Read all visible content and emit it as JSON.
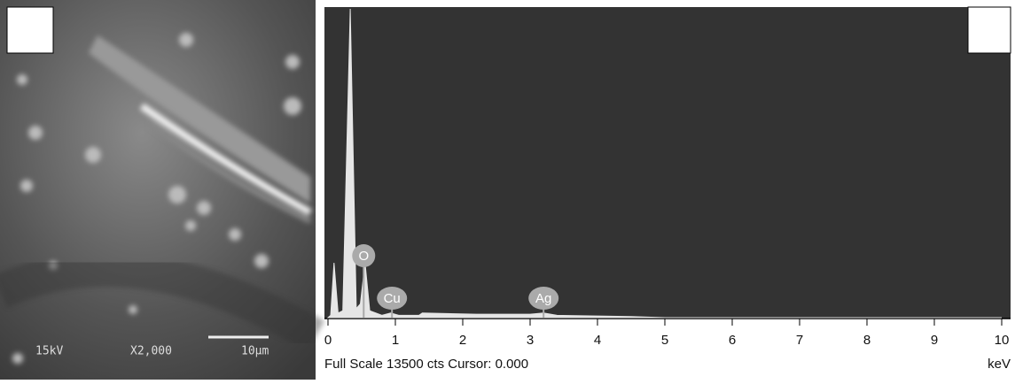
{
  "chart_data": {
    "type": "area",
    "x": [
      0,
      0.04,
      0.09,
      0.15,
      0.22,
      0.33,
      0.42,
      0.48,
      0.55,
      0.62,
      0.8,
      0.93,
      1.05,
      1.35,
      1.4,
      2.2,
      3.0,
      3.2,
      3.4,
      4.5,
      5,
      10
    ],
    "values": [
      0,
      100,
      2400,
      200,
      300,
      13500,
      400,
      600,
      2400,
      300,
      100,
      200,
      100,
      100,
      200,
      150,
      150,
      200,
      100,
      50,
      0,
      0
    ],
    "color": "#e6e6e6",
    "xlim": [
      0,
      10
    ],
    "xticks": [
      0,
      1,
      2,
      3,
      4,
      5,
      6,
      7,
      8,
      9,
      10
    ],
    "ylim": [
      0,
      13500
    ],
    "xlabel": "keV",
    "footer": "Full Scale 13500 cts Cursor: 0.000",
    "annotations": [
      {
        "label": "O",
        "x": 0.53
      },
      {
        "label": "Cu",
        "x": 0.95
      },
      {
        "label": "Ag",
        "x": 3.2
      }
    ]
  },
  "sem_image": {
    "voltage": "15kV",
    "magnification": "X2,000",
    "scale_bar": "10µm"
  }
}
